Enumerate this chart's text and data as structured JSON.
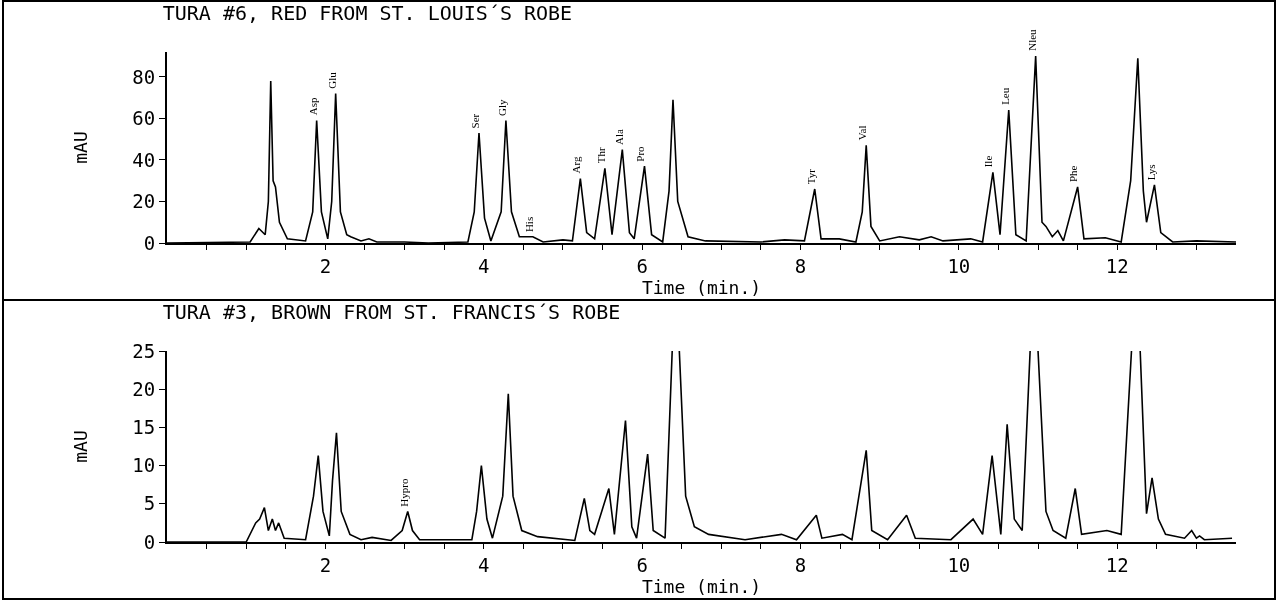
{
  "chart_data": [
    {
      "type": "line",
      "title": "TURA #6, RED FROM ST. LOUIS´S ROBE",
      "xlabel": "Time (min.)",
      "ylabel": "mAU",
      "color": "#000000",
      "marker": "none",
      "line_style": "solid",
      "grid": false,
      "xlim": [
        0,
        13.5
      ],
      "ylim": [
        0,
        92
      ],
      "xticks": [
        {
          "value": 0.5,
          "label": null
        },
        {
          "value": 1,
          "label": null
        },
        {
          "value": 1.5,
          "label": null
        },
        2,
        {
          "value": 2.5,
          "label": null
        },
        {
          "value": 3,
          "label": null
        },
        {
          "value": 3.5,
          "label": null
        },
        4,
        {
          "value": 4.5,
          "label": null
        },
        {
          "value": 5,
          "label": null
        },
        {
          "value": 5.5,
          "label": null
        },
        6,
        {
          "value": 6.5,
          "label": null
        },
        {
          "value": 7,
          "label": null
        },
        {
          "value": 7.5,
          "label": null
        },
        8,
        {
          "value": 8.5,
          "label": null
        },
        {
          "value": 9,
          "label": null
        },
        {
          "value": 9.5,
          "label": null
        },
        10,
        {
          "value": 10.5,
          "label": null
        },
        {
          "value": 11,
          "label": null
        },
        {
          "value": 11.5,
          "label": null
        },
        12,
        {
          "value": 12.5,
          "label": null
        },
        {
          "value": 13,
          "label": null
        }
      ],
      "yticks": [
        0,
        20,
        40,
        60,
        80
      ],
      "x": [
        0,
        1.05,
        1.16,
        1.24,
        1.28,
        1.31,
        1.34,
        1.37,
        1.42,
        1.52,
        1.75,
        1.84,
        1.89,
        1.95,
        2.03,
        2.08,
        2.13,
        2.19,
        2.27,
        2.32,
        2.45,
        2.55,
        2.65,
        3.0,
        3.3,
        3.8,
        3.88,
        3.94,
        4.01,
        4.09,
        4.22,
        4.28,
        4.35,
        4.45,
        4.62,
        4.75,
        5.0,
        5.12,
        5.22,
        5.3,
        5.4,
        5.53,
        5.62,
        5.75,
        5.84,
        5.9,
        6.03,
        6.12,
        6.26,
        6.34,
        6.39,
        6.45,
        6.58,
        6.8,
        7.5,
        7.8,
        8.05,
        8.18,
        8.26,
        8.49,
        8.7,
        8.78,
        8.83,
        8.89,
        9.0,
        9.25,
        9.5,
        9.65,
        9.8,
        10.15,
        10.3,
        10.43,
        10.52,
        10.63,
        10.72,
        10.85,
        10.97,
        11.05,
        11.1,
        11.18,
        11.25,
        11.32,
        11.5,
        11.58,
        11.85,
        12.05,
        12.17,
        12.26,
        12.33,
        12.37,
        12.47,
        12.55,
        12.7,
        13.0,
        13.5
      ],
      "values": [
        0,
        0.5,
        7,
        4,
        20,
        78,
        30,
        27,
        10,
        2,
        1,
        15,
        59,
        15,
        2,
        20,
        72,
        15,
        4,
        3,
        1,
        2,
        0.5,
        0.5,
        0,
        0.5,
        15,
        53,
        12,
        1,
        15,
        59,
        15,
        3,
        3,
        0.5,
        1.5,
        1,
        31,
        5,
        2,
        36,
        4,
        45,
        5,
        2,
        37,
        4,
        0.5,
        25,
        69,
        20,
        3,
        1,
        0.5,
        1.5,
        1,
        26,
        2,
        2,
        0.5,
        15,
        47,
        8,
        1,
        3,
        1.5,
        3,
        1,
        2,
        0.5,
        34,
        4,
        64,
        4,
        1,
        90,
        10,
        8,
        3,
        6,
        1,
        27,
        2,
        2.5,
        0.5,
        30,
        89,
        25,
        10,
        28,
        5,
        0.5,
        1,
        0.5
      ],
      "annotations": [
        {
          "text": "Asp",
          "x": 1.89,
          "y": 59
        },
        {
          "text": "Glu",
          "x": 2.13,
          "y": 72
        },
        {
          "text": "Ser",
          "x": 3.94,
          "y": 53
        },
        {
          "text": "Gly",
          "x": 4.28,
          "y": 59
        },
        {
          "text": "His",
          "x": 4.62,
          "y": 3
        },
        {
          "text": "Arg",
          "x": 5.22,
          "y": 31
        },
        {
          "text": "Thr",
          "x": 5.53,
          "y": 36
        },
        {
          "text": "Ala",
          "x": 5.75,
          "y": 45
        },
        {
          "text": "Pro",
          "x": 6.03,
          "y": 37
        },
        {
          "text": "Tyr",
          "x": 8.18,
          "y": 26
        },
        {
          "text": "Val",
          "x": 8.83,
          "y": 47
        },
        {
          "text": "Ile",
          "x": 10.43,
          "y": 34
        },
        {
          "text": "Leu",
          "x": 10.63,
          "y": 64
        },
        {
          "text": "Nleu",
          "x": 10.97,
          "y": 90
        },
        {
          "text": "Phe",
          "x": 11.5,
          "y": 27
        },
        {
          "text": "Lys",
          "x": 12.47,
          "y": 28
        }
      ]
    },
    {
      "type": "line",
      "title": "TURA #3, BROWN FROM ST. FRANCIS´S ROBE",
      "xlabel": "Time (min.)",
      "ylabel": "mAU",
      "color": "#000000",
      "marker": "none",
      "line_style": "solid",
      "grid": false,
      "xlim": [
        0,
        13.5
      ],
      "ylim": [
        0,
        25
      ],
      "xticks": [
        {
          "value": 0.5,
          "label": null
        },
        {
          "value": 1,
          "label": null
        },
        {
          "value": 1.5,
          "label": null
        },
        2,
        {
          "value": 2.5,
          "label": null
        },
        {
          "value": 3,
          "label": null
        },
        {
          "value": 3.5,
          "label": null
        },
        4,
        {
          "value": 4.5,
          "label": null
        },
        {
          "value": 5,
          "label": null
        },
        {
          "value": 5.5,
          "label": null
        },
        6,
        {
          "value": 6.5,
          "label": null
        },
        {
          "value": 7,
          "label": null
        },
        {
          "value": 7.5,
          "label": null
        },
        8,
        {
          "value": 8.5,
          "label": null
        },
        {
          "value": 9,
          "label": null
        },
        {
          "value": 9.5,
          "label": null
        },
        10,
        {
          "value": 10.5,
          "label": null
        },
        {
          "value": 11,
          "label": null
        },
        {
          "value": 11.5,
          "label": null
        },
        12,
        {
          "value": 12.5,
          "label": null
        },
        {
          "value": 13,
          "label": null
        }
      ],
      "yticks": [
        0,
        5,
        10,
        15,
        20,
        25
      ],
      "x": [
        0,
        1.0,
        1.12,
        1.17,
        1.23,
        1.28,
        1.33,
        1.37,
        1.41,
        1.48,
        1.75,
        1.85,
        1.91,
        1.97,
        2.05,
        2.09,
        2.14,
        2.2,
        2.31,
        2.45,
        2.59,
        2.83,
        2.97,
        3.04,
        3.1,
        3.19,
        3.85,
        3.91,
        3.97,
        4.04,
        4.11,
        4.24,
        4.31,
        4.37,
        4.48,
        4.68,
        5.15,
        5.27,
        5.34,
        5.4,
        5.58,
        5.65,
        5.79,
        5.87,
        5.93,
        6.07,
        6.14,
        6.29,
        6.38,
        6.42,
        6.47,
        6.55,
        6.66,
        6.84,
        7.3,
        7.76,
        7.95,
        8.2,
        8.27,
        8.53,
        8.65,
        8.83,
        8.9,
        9.1,
        9.34,
        9.45,
        9.9,
        10.18,
        10.3,
        10.42,
        10.53,
        10.61,
        10.7,
        10.8,
        10.9,
        10.95,
        11.0,
        11.1,
        11.19,
        11.35,
        11.47,
        11.55,
        11.87,
        12.05,
        12.18,
        12.23,
        12.29,
        12.37,
        12.44,
        12.52,
        12.61,
        12.85,
        12.94,
        13.0,
        13.04,
        13.1,
        13.45
      ],
      "values": [
        0,
        0,
        2.5,
        3,
        4.5,
        1.5,
        3,
        1.5,
        2.5,
        0.5,
        0.3,
        6,
        11.3,
        4,
        0.8,
        8,
        14.3,
        4,
        1,
        0.3,
        0.6,
        0.2,
        1.5,
        4,
        1.5,
        0.3,
        0.3,
        4,
        10,
        3,
        0.5,
        6,
        19.4,
        6,
        1.5,
        0.7,
        0.2,
        5.7,
        1.5,
        1,
        7,
        1,
        15.9,
        2,
        0.5,
        11.5,
        1.5,
        0.5,
        25,
        null,
        25,
        6,
        2,
        1,
        0.3,
        1,
        0.3,
        3.5,
        0.5,
        1,
        0.3,
        12,
        1.5,
        0.3,
        3.5,
        0.5,
        0.3,
        3,
        1,
        11.3,
        1,
        15.4,
        3,
        1.5,
        25,
        null,
        25,
        4,
        1.5,
        0.5,
        7,
        1,
        1.5,
        1,
        25,
        null,
        25,
        3.7,
        8.4,
        3,
        1,
        0.5,
        1.5,
        0.5,
        0.8,
        0.3,
        0.5
      ],
      "annotations": [
        {
          "text": "Hypro",
          "x": 3.04,
          "y": 4
        }
      ]
    }
  ]
}
